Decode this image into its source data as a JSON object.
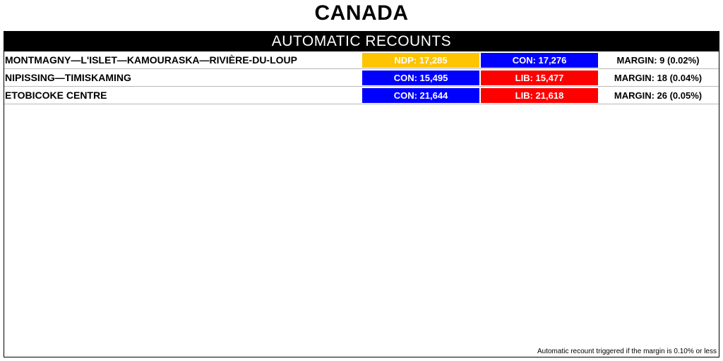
{
  "title": "CANADA",
  "panel": {
    "header": "AUTOMATIC RECOUNTS",
    "rows": [
      {
        "riding": "MONTMAGNY—L'ISLET—KAMOURASKA—RIVIÈRE-DU-LOUP",
        "first": {
          "label": "NDP: 17,285",
          "color": "#ffc400"
        },
        "second": {
          "label": "CON: 17,276",
          "color": "#0000ff"
        },
        "margin": "MARGIN: 9 (0.02%)"
      },
      {
        "riding": "NIPISSING—TIMISKAMING",
        "first": {
          "label": "CON: 15,495",
          "color": "#0000ff"
        },
        "second": {
          "label": "LIB: 15,477",
          "color": "#ff0000"
        },
        "margin": "MARGIN: 18 (0.04%)"
      },
      {
        "riding": "ETOBICOKE CENTRE",
        "first": {
          "label": "CON: 21,644",
          "color": "#0000ff"
        },
        "second": {
          "label": "LIB: 21,618",
          "color": "#ff0000"
        },
        "margin": "MARGIN: 26 (0.05%)"
      }
    ],
    "footnote": "Automatic recount triggered if the margin is 0.10% or less"
  }
}
